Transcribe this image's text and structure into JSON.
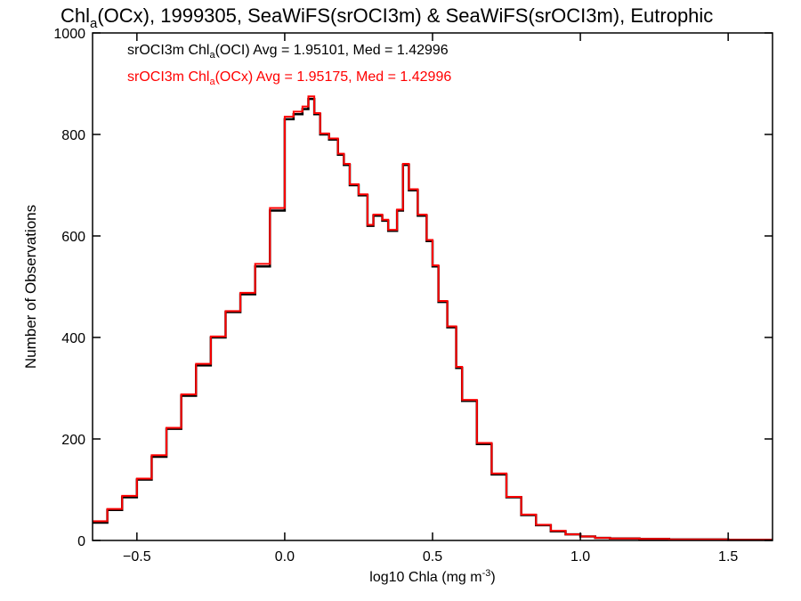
{
  "chart_data": {
    "type": "line",
    "title_parts": [
      "Chl",
      "a",
      "(OCx), 1999305, SeaWiFS(srOCI3m) & SeaWiFS(srOCI3m), Eutrophic"
    ],
    "xlabel_parts": [
      "log10 Chla (mg m",
      "-3",
      ")"
    ],
    "ylabel": "Number of Observations",
    "xlim": [
      -0.65,
      1.65
    ],
    "ylim": [
      0,
      1000
    ],
    "xticks": [
      -0.5,
      0.0,
      0.5,
      1.0,
      1.5
    ],
    "xtick_labels": [
      "−0.5",
      "0.0",
      "0.5",
      "1.0",
      "1.5"
    ],
    "yticks": [
      0,
      200,
      400,
      600,
      800,
      1000
    ],
    "ytick_labels": [
      "0",
      "200",
      "400",
      "600",
      "800",
      "1000"
    ],
    "legend": [
      {
        "parts": [
          "srOCI3m Chl",
          "a",
          "(OCI) Avg = 1.95101, Med = 1.42996"
        ],
        "color": "#000000"
      },
      {
        "parts": [
          "srOCI3m Chl",
          "a",
          "(OCx) Avg = 1.95175, Med = 1.42996"
        ],
        "color": "#ff0000"
      }
    ],
    "legend_position": "top-left",
    "series": [
      {
        "color": "#000000",
        "x": [
          -0.65,
          -0.6,
          -0.55,
          -0.5,
          -0.45,
          -0.4,
          -0.35,
          -0.3,
          -0.25,
          -0.2,
          -0.15,
          -0.1,
          -0.05,
          0.0,
          0.03,
          0.06,
          0.08,
          0.1,
          0.12,
          0.15,
          0.18,
          0.2,
          0.22,
          0.25,
          0.28,
          0.3,
          0.33,
          0.35,
          0.38,
          0.4,
          0.42,
          0.45,
          0.48,
          0.5,
          0.52,
          0.55,
          0.58,
          0.6,
          0.65,
          0.7,
          0.75,
          0.8,
          0.85,
          0.9,
          0.95,
          1.0,
          1.05,
          1.1,
          1.2,
          1.3,
          1.4,
          1.5,
          1.65
        ],
        "y": [
          35,
          60,
          85,
          120,
          165,
          220,
          285,
          345,
          400,
          450,
          485,
          540,
          650,
          830,
          840,
          850,
          870,
          840,
          800,
          790,
          760,
          740,
          700,
          680,
          620,
          640,
          630,
          610,
          650,
          740,
          690,
          640,
          590,
          540,
          470,
          420,
          340,
          275,
          190,
          130,
          85,
          50,
          30,
          18,
          12,
          8,
          5,
          4,
          3,
          2,
          2,
          1,
          1
        ]
      },
      {
        "color": "#ff0000",
        "x": [
          -0.65,
          -0.6,
          -0.55,
          -0.5,
          -0.45,
          -0.4,
          -0.35,
          -0.3,
          -0.25,
          -0.2,
          -0.15,
          -0.1,
          -0.05,
          0.0,
          0.03,
          0.06,
          0.08,
          0.1,
          0.12,
          0.15,
          0.18,
          0.2,
          0.22,
          0.25,
          0.28,
          0.3,
          0.33,
          0.35,
          0.38,
          0.4,
          0.42,
          0.45,
          0.48,
          0.5,
          0.52,
          0.55,
          0.58,
          0.6,
          0.65,
          0.7,
          0.75,
          0.8,
          0.85,
          0.9,
          0.95,
          1.0,
          1.05,
          1.1,
          1.2,
          1.3,
          1.4,
          1.5,
          1.65
        ],
        "y": [
          38,
          62,
          88,
          122,
          168,
          222,
          288,
          348,
          402,
          452,
          488,
          545,
          655,
          835,
          845,
          855,
          875,
          842,
          802,
          792,
          762,
          742,
          702,
          682,
          622,
          642,
          632,
          612,
          652,
          742,
          692,
          642,
          592,
          542,
          472,
          422,
          342,
          277,
          192,
          132,
          86,
          51,
          31,
          19,
          12,
          8,
          5,
          4,
          3,
          2,
          2,
          1,
          1
        ]
      }
    ]
  }
}
